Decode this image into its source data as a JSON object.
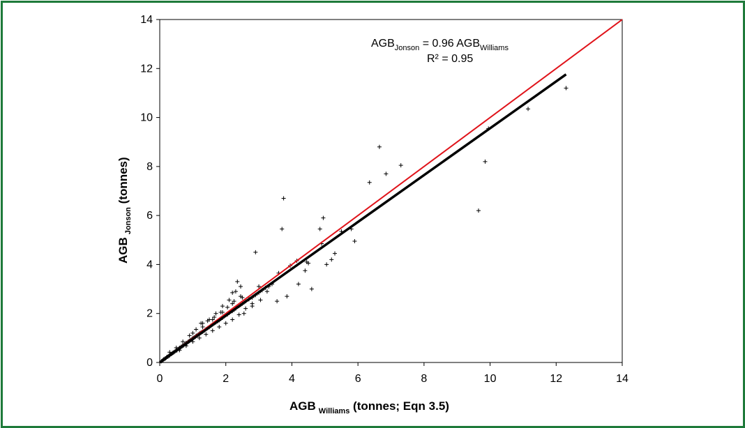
{
  "chart_data": {
    "type": "scatter",
    "title": "",
    "xlabel": {
      "main": "AGB",
      "sub": "Williams",
      "rest": " (tonnes; Eqn 3.5)"
    },
    "ylabel": {
      "main": "AGB",
      "sub": "Jonson",
      "rest": " (tonnes)"
    },
    "xlim": [
      0,
      14
    ],
    "ylim": [
      0,
      14
    ],
    "x_ticks": [
      0,
      2,
      4,
      6,
      8,
      10,
      12,
      14
    ],
    "y_ticks": [
      0,
      2,
      4,
      6,
      8,
      10,
      12,
      14
    ],
    "grid": false,
    "legend": "none",
    "annotation": {
      "eq_lhs": "AGB",
      "eq_lhs_sub": "Jonson",
      "eq_mid": " = 0.96 AGB",
      "eq_rhs_sub": "Williams",
      "r2": "R² = 0.95"
    },
    "colors": {
      "frame": "#1e7a3a",
      "one_to_one": "#e0131a",
      "fit": "#000000",
      "points": "#000000"
    },
    "series": [
      {
        "type": "scatter",
        "marker": "+",
        "x": [
          0.05,
          0.08,
          0.1,
          0.12,
          0.15,
          0.18,
          0.2,
          0.22,
          0.25,
          0.28,
          0.3,
          0.32,
          0.35,
          0.38,
          0.4,
          0.42,
          0.45,
          0.48,
          0.5,
          0.52,
          0.55,
          0.58,
          0.6,
          0.62,
          0.65,
          0.68,
          0.7,
          0.72,
          0.75,
          0.78,
          0.8,
          0.82,
          0.85,
          0.88,
          0.9,
          0.92,
          0.95,
          0.98,
          1.0,
          1.02,
          1.05,
          1.08,
          1.1,
          1.12,
          1.15,
          1.18,
          1.2,
          1.22,
          1.25,
          1.28,
          1.3,
          1.35,
          1.4,
          1.45,
          1.5,
          1.55,
          1.6,
          1.65,
          1.7,
          1.75,
          1.8,
          1.85,
          1.9,
          1.95,
          2.0,
          2.05,
          2.1,
          2.15,
          2.2,
          2.25,
          2.3,
          2.35,
          2.4,
          2.45,
          2.5,
          2.55,
          2.6,
          2.7,
          2.8,
          2.9,
          3.0,
          3.1,
          3.2,
          3.3,
          3.4,
          0.3,
          0.5,
          0.7,
          0.9,
          1.1,
          1.3,
          1.5,
          1.7,
          1.9,
          2.1,
          2.3,
          0.6,
          0.8,
          1.0,
          1.2,
          1.4,
          1.6,
          1.8,
          2.0,
          2.2,
          2.4,
          2.6,
          2.8,
          1.25,
          1.45,
          1.65,
          1.85,
          2.05,
          2.25,
          2.45,
          1.0,
          1.3,
          1.6,
          1.9,
          2.2,
          2.5,
          2.35,
          2.45,
          2.2,
          2.55,
          2.8,
          3.05,
          3.25,
          3.55,
          3.85,
          4.2,
          3.6,
          2.9,
          3.0,
          3.7,
          3.75,
          4.45,
          4.85,
          4.9,
          4.95,
          5.05,
          5.2,
          5.3,
          5.5,
          5.8,
          5.9,
          4.4,
          4.15,
          4.5,
          3.95,
          4.6,
          6.35,
          6.65,
          6.85,
          7.3,
          9.65,
          9.85,
          9.95,
          11.15,
          12.3
        ],
        "y": [
          0.05,
          0.07,
          0.1,
          0.13,
          0.15,
          0.17,
          0.2,
          0.23,
          0.24,
          0.27,
          0.29,
          0.33,
          0.34,
          0.37,
          0.4,
          0.41,
          0.44,
          0.47,
          0.5,
          0.49,
          0.55,
          0.56,
          0.6,
          0.6,
          0.64,
          0.66,
          0.7,
          0.69,
          0.74,
          0.76,
          0.8,
          0.78,
          0.84,
          0.86,
          0.88,
          0.9,
          0.93,
          0.96,
          0.98,
          1.0,
          1.02,
          1.05,
          1.08,
          1.1,
          1.12,
          1.15,
          1.17,
          1.2,
          1.22,
          1.24,
          1.26,
          1.3,
          1.36,
          1.4,
          1.44,
          1.5,
          1.55,
          1.6,
          1.64,
          1.68,
          1.72,
          1.78,
          1.82,
          1.88,
          1.93,
          1.96,
          2.02,
          2.08,
          2.1,
          2.15,
          2.2,
          2.28,
          2.3,
          2.35,
          2.4,
          2.45,
          2.5,
          2.58,
          2.65,
          2.75,
          2.85,
          2.95,
          3.05,
          3.1,
          3.2,
          0.42,
          0.6,
          0.85,
          1.1,
          1.35,
          1.6,
          1.75,
          2.0,
          2.3,
          2.55,
          2.9,
          0.5,
          0.68,
          0.85,
          1.0,
          1.15,
          1.3,
          1.45,
          1.6,
          1.75,
          1.95,
          2.2,
          2.4,
          1.6,
          1.7,
          1.85,
          2.05,
          2.25,
          2.5,
          2.7,
          1.2,
          1.45,
          1.75,
          2.05,
          2.4,
          2.65,
          3.3,
          3.1,
          2.85,
          2.0,
          2.3,
          2.55,
          2.9,
          2.5,
          2.7,
          3.2,
          3.65,
          4.5,
          3.1,
          5.45,
          6.7,
          4.1,
          5.45,
          4.85,
          5.9,
          4.0,
          4.2,
          4.45,
          5.35,
          5.45,
          4.95,
          3.75,
          4.15,
          4.05,
          3.95,
          3.0,
          7.35,
          8.8,
          7.7,
          8.05,
          6.2,
          8.2,
          9.55,
          10.35,
          11.2
        ]
      },
      {
        "name": "",
        "type": "line",
        "role": "1:1 line",
        "x": [
          0,
          14
        ],
        "y": [
          0,
          14
        ]
      },
      {
        "name": "",
        "type": "line",
        "role": "regression fit",
        "x": [
          0,
          12.3
        ],
        "y": [
          0,
          11.76
        ]
      }
    ]
  }
}
